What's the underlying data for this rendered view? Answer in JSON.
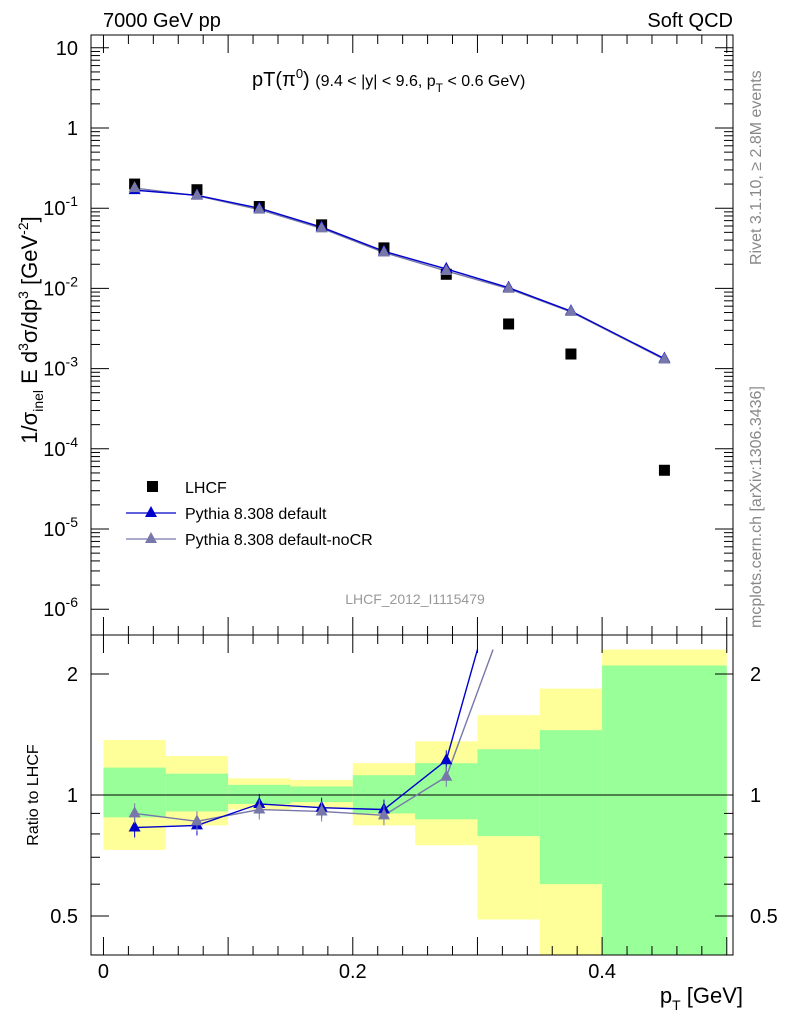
{
  "header": {
    "energy_label": "7000 GeV pp",
    "process_label": "Soft QCD"
  },
  "side_labels": {
    "rivet": "Rivet 3.1.10, ≥ 2.8M events",
    "mcplots": "mcplots.cern.ch [arXiv:1306.3436]"
  },
  "analysis_id": "LHCF_2012_I1115479",
  "chart_data": [
    {
      "type": "scatter",
      "title": "pT(π⁰) (9.4 < |y| < 9.6, pT < 0.6 GeV)",
      "ylabel": "1/σinel E d³σ/dp³ [GeV⁻²]",
      "yscale": "log",
      "xlim": [
        -0.01,
        0.505
      ],
      "ylim": [
        5e-07,
        15
      ],
      "y_ticks": [
        "10⁻⁶",
        "10⁻⁵",
        "10⁻⁴",
        "10⁻³",
        "10⁻²",
        "10⁻¹",
        "1",
        "10"
      ],
      "legend_position": "lower-left",
      "series": [
        {
          "name": "LHCF",
          "color": "#000000",
          "marker": "square",
          "x": [
            0.025,
            0.075,
            0.125,
            0.175,
            0.225,
            0.275,
            0.325,
            0.375,
            0.45
          ],
          "y": [
            0.2,
            0.17,
            0.105,
            0.062,
            0.032,
            0.015,
            0.0036,
            0.00152,
            5.4e-05
          ]
        },
        {
          "name": "Pythia 8.308 default",
          "color": "#0000cc",
          "marker": "triangle",
          "x": [
            0.025,
            0.075,
            0.125,
            0.175,
            0.225,
            0.275,
            0.325,
            0.375,
            0.45
          ],
          "y": [
            0.168,
            0.145,
            0.1,
            0.058,
            0.029,
            0.0175,
            0.0102,
            0.0052,
            0.00133
          ]
        },
        {
          "name": "Pythia 8.308 default-noCR",
          "color": "#7777aa",
          "marker": "triangle",
          "x": [
            0.025,
            0.075,
            0.125,
            0.175,
            0.225,
            0.275,
            0.325,
            0.375,
            0.45
          ],
          "y": [
            0.178,
            0.143,
            0.096,
            0.056,
            0.028,
            0.0165,
            0.0099,
            0.0051,
            0.0013
          ]
        }
      ]
    },
    {
      "type": "line",
      "ylabel": "Ratio to LHCF",
      "xlabel": "pT [GeV]",
      "xlim": [
        -0.01,
        0.505
      ],
      "ylim": [
        0.35,
        2.3
      ],
      "x_ticks": [
        "0",
        "0.2",
        "0.4"
      ],
      "y_ticks": [
        "0.5",
        "1",
        "2"
      ],
      "bands": {
        "edges": [
          0.0,
          0.05,
          0.1,
          0.15,
          0.2,
          0.25,
          0.3,
          0.35,
          0.4,
          0.5
        ],
        "green_upper": [
          1.17,
          1.13,
          1.06,
          1.05,
          1.12,
          1.2,
          1.3,
          1.45,
          2.1
        ],
        "green_lower": [
          0.88,
          0.91,
          0.95,
          0.96,
          0.9,
          0.87,
          0.79,
          0.6,
          0.35
        ],
        "yellow_upper": [
          1.37,
          1.25,
          1.1,
          1.09,
          1.2,
          1.36,
          1.58,
          1.84,
          2.3
        ],
        "yellow_lower": [
          0.73,
          0.84,
          0.92,
          0.93,
          0.84,
          0.75,
          0.49,
          0.35,
          0.35
        ]
      },
      "series": [
        {
          "name": "Pythia 8.308 default",
          "color": "#0000cc",
          "x": [
            0.025,
            0.075,
            0.125,
            0.175,
            0.225,
            0.275,
            0.3
          ],
          "y": [
            0.83,
            0.84,
            0.95,
            0.93,
            0.92,
            1.22,
            2.3
          ],
          "marker_count": 6
        },
        {
          "name": "Pythia 8.308 default-noCR",
          "color": "#7777aa",
          "x": [
            0.025,
            0.075,
            0.125,
            0.175,
            0.225,
            0.275,
            0.3125
          ],
          "y": [
            0.9,
            0.86,
            0.92,
            0.91,
            0.89,
            1.11,
            2.3
          ],
          "marker_count": 6
        }
      ]
    }
  ]
}
